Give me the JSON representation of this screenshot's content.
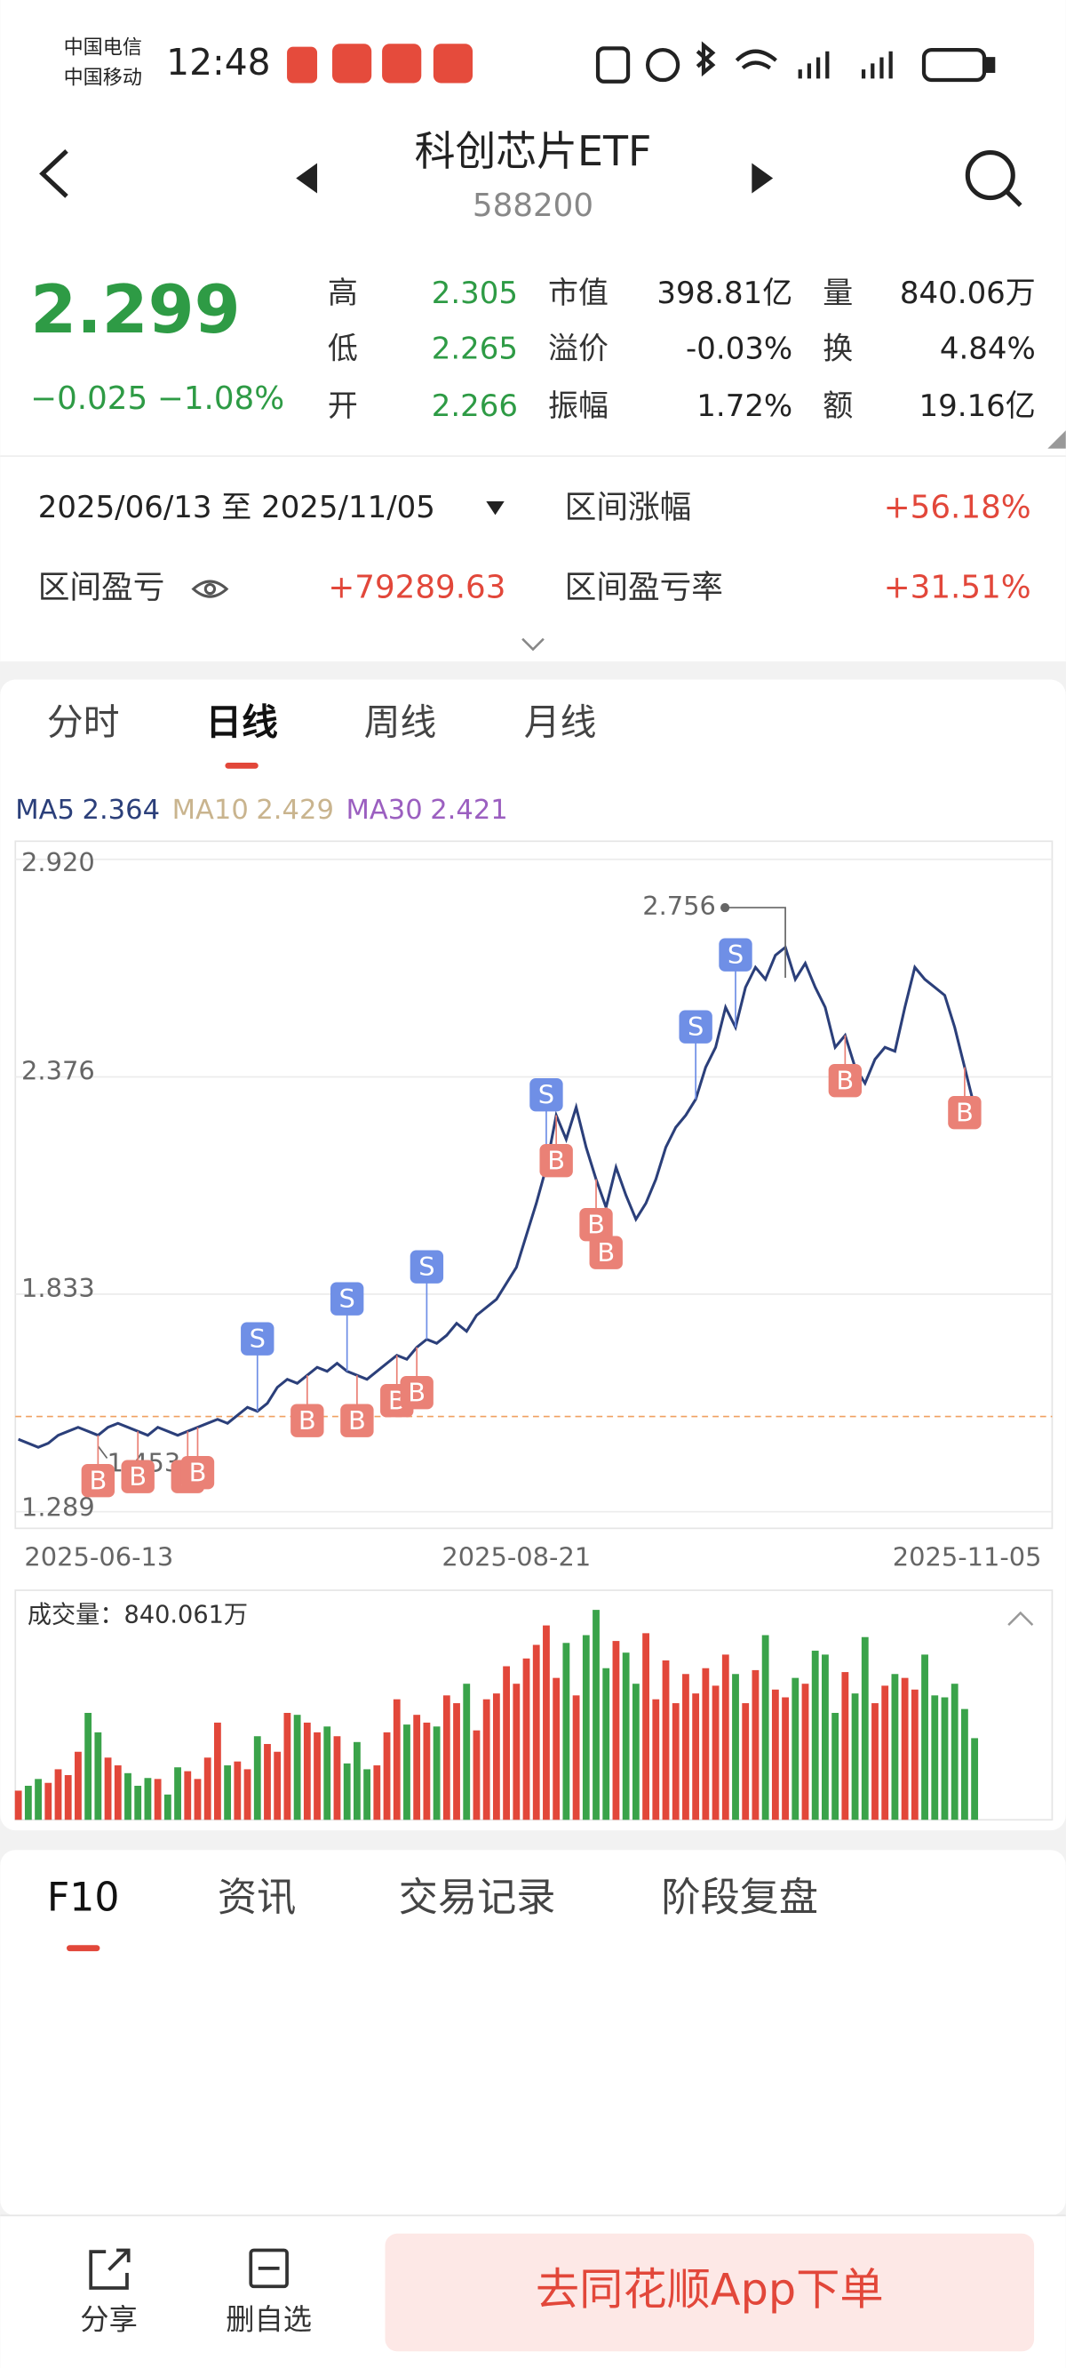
{
  "status": {
    "carriers": [
      "中国电信",
      "中国移动"
    ],
    "time": "12:48"
  },
  "header": {
    "title": "科创芯片ETF",
    "code": "588200"
  },
  "quote": {
    "price": "2.299",
    "change": "−0.025",
    "pct": "−1.08%",
    "color": "#2e9b45",
    "stats": [
      [
        {
          "label": "高",
          "value": "2.305",
          "color": "#2e9b45"
        },
        {
          "label": "市值",
          "value": "398.81亿",
          "color": "#222"
        },
        {
          "label": "量",
          "value": "840.06万",
          "color": "#222"
        }
      ],
      [
        {
          "label": "低",
          "value": "2.265",
          "color": "#2e9b45"
        },
        {
          "label": "溢价",
          "value": "-0.03%",
          "color": "#222"
        },
        {
          "label": "换",
          "value": "4.84%",
          "color": "#222"
        }
      ],
      [
        {
          "label": "开",
          "value": "2.266",
          "color": "#2e9b45"
        },
        {
          "label": "振幅",
          "value": "1.72%",
          "color": "#222"
        },
        {
          "label": "额",
          "value": "19.16亿",
          "color": "#222"
        }
      ]
    ]
  },
  "position": {
    "range": "2025/06/13 至 2025/11/05",
    "rise_label": "区间涨幅",
    "rise": "+56.18%",
    "pnl_label": "区间盈亏",
    "pnl": "+79289.63",
    "rate_label": "区间盈亏率",
    "rate": "+31.51%"
  },
  "tabs": {
    "items": [
      "分时",
      "日线",
      "周线",
      "月线"
    ],
    "active": 1
  },
  "ma": [
    {
      "name": "MA5",
      "value": "2.364",
      "color": "#2b3f7a"
    },
    {
      "name": "MA10",
      "value": "2.429",
      "color": "#c9b48e"
    },
    {
      "name": "MA30",
      "value": "2.421",
      "color": "#9b5fc0"
    }
  ],
  "chart_data": {
    "type": "line",
    "line_color": "#2b3f7a",
    "up_color": "#e2473a",
    "down_color": "#3aa34a",
    "cost_color": "#f0a060",
    "categories": [
      "2025-06-13",
      null,
      null,
      null,
      null,
      null,
      null,
      null,
      null,
      null,
      null,
      null,
      null,
      null,
      null,
      null,
      null,
      null,
      null,
      null,
      null,
      null,
      null,
      null,
      null,
      null,
      null,
      null,
      null,
      null,
      null,
      null,
      null,
      null,
      null,
      null,
      null,
      null,
      null,
      null,
      null,
      null,
      null,
      null,
      null,
      null,
      null,
      null,
      null,
      null,
      "2025-08-21",
      null,
      null,
      null,
      null,
      null,
      null,
      null,
      null,
      null,
      null,
      null,
      null,
      null,
      null,
      null,
      null,
      null,
      null,
      null,
      null,
      null,
      null,
      null,
      null,
      null,
      null,
      null,
      null,
      null,
      null,
      null,
      null,
      null,
      null,
      null,
      null,
      null,
      null,
      null,
      null,
      null,
      null,
      null,
      null,
      null,
      "2025-11-05"
    ],
    "values": [
      1.47,
      1.46,
      1.45,
      1.46,
      1.48,
      1.49,
      1.5,
      1.49,
      1.48,
      1.5,
      1.51,
      1.5,
      1.49,
      1.48,
      1.5,
      1.49,
      1.48,
      1.49,
      1.5,
      1.51,
      1.52,
      1.51,
      1.53,
      1.55,
      1.54,
      1.56,
      1.6,
      1.62,
      1.61,
      1.63,
      1.65,
      1.64,
      1.66,
      1.64,
      1.63,
      1.62,
      1.64,
      1.66,
      1.68,
      1.67,
      1.7,
      1.72,
      1.71,
      1.73,
      1.76,
      1.74,
      1.78,
      1.8,
      1.82,
      1.86,
      1.9,
      1.98,
      2.06,
      2.15,
      2.28,
      2.22,
      2.3,
      2.2,
      2.12,
      2.05,
      2.15,
      2.08,
      2.02,
      2.06,
      2.12,
      2.2,
      2.25,
      2.28,
      2.32,
      2.4,
      2.45,
      2.55,
      2.5,
      2.6,
      2.65,
      2.62,
      2.68,
      2.7,
      2.62,
      2.66,
      2.6,
      2.55,
      2.45,
      2.48,
      2.4,
      2.36,
      2.42,
      2.45,
      2.44,
      2.55,
      2.65,
      2.62,
      2.6,
      2.58,
      2.5,
      2.4,
      2.299
    ],
    "volumes": [
      300,
      350,
      420,
      380,
      520,
      460,
      700,
      1100,
      900,
      640,
      560,
      480,
      350,
      430,
      420,
      260,
      540,
      500,
      420,
      640,
      1000,
      560,
      600,
      520,
      860,
      780,
      700,
      1100,
      1080,
      1000,
      900,
      960,
      860,
      580,
      800,
      520,
      560,
      900,
      1240,
      980,
      1080,
      1000,
      960,
      1280,
      1200,
      1400,
      920,
      1240,
      1300,
      1580,
      1400,
      1660,
      1800,
      2000,
      1460,
      1820,
      1280,
      1900,
      2160,
      1560,
      1840,
      1720,
      1400,
      1920,
      1240,
      1640,
      1200,
      1500,
      1300,
      1560,
      1380,
      1700,
      1500,
      1200,
      1540,
      1900,
      1340,
      1260,
      1460,
      1400,
      1740,
      1700,
      1100,
      1520,
      1300,
      1880,
      1200,
      1380,
      1500,
      1460,
      1340,
      1700,
      1280,
      1260,
      1400,
      1140,
      840.061
    ],
    "volume_title": "成交量：",
    "volume_value": "840.061万",
    "ylim": [
      1.289,
      2.92
    ],
    "yticks": [
      1.289,
      1.833,
      2.376,
      {
        "value": 2.92,
        "label": "2.920"
      }
    ],
    "grid": true,
    "cost_line": 1.527,
    "high": {
      "index": 77,
      "value": 2.756
    },
    "low": {
      "index": 8,
      "value": 1.453
    },
    "trades": [
      {
        "index": 8,
        "label": "B"
      },
      {
        "index": 12,
        "label": "B"
      },
      {
        "index": 17,
        "label": "B"
      },
      {
        "index": 18,
        "label": "B"
      },
      {
        "index": 24,
        "label": "S"
      },
      {
        "index": 29,
        "label": "B"
      },
      {
        "index": 33,
        "label": "S"
      },
      {
        "index": 34,
        "label": "B"
      },
      {
        "index": 38,
        "label": "B"
      },
      {
        "index": 40,
        "label": "B"
      },
      {
        "index": 41,
        "label": "S"
      },
      {
        "index": 53,
        "label": "S"
      },
      {
        "index": 54,
        "label": "B"
      },
      {
        "index": 58,
        "label": "B"
      },
      {
        "index": 59,
        "label": "B"
      },
      {
        "index": 68,
        "label": "S"
      },
      {
        "index": 72,
        "label": "S"
      },
      {
        "index": 83,
        "label": "B"
      },
      {
        "index": 95,
        "label": "B"
      }
    ]
  },
  "bottom_tabs": {
    "items": [
      "F10",
      "资讯",
      "交易记录",
      "阶段复盘"
    ],
    "active": 0
  },
  "footer": {
    "share": "分享",
    "remove": "删自选",
    "button": "去同花顺App下单"
  }
}
